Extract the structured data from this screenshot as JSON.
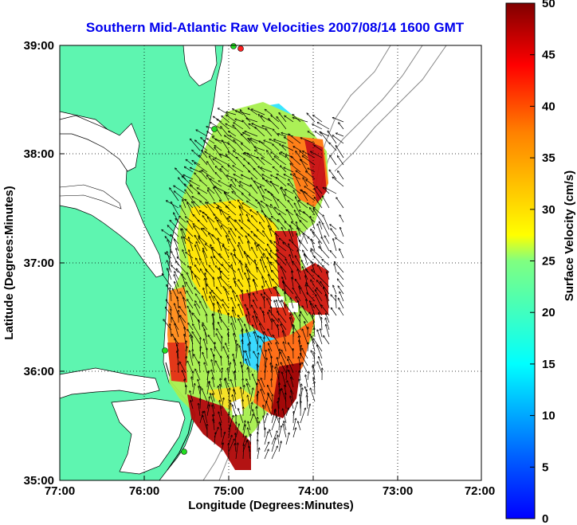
{
  "title": "Southern Mid-Atlantic Raw Velocities 2007/08/14 1600 GMT",
  "map": {
    "xlabel": "Longitude (Degrees:Minutes)",
    "ylabel": "Latitude (Degrees:Minutes)",
    "x_ticks": [
      "77:00",
      "76:00",
      "75:00",
      "74:00",
      "73:00",
      "72:00"
    ],
    "y_ticks": [
      "39:00",
      "38:00",
      "37:00",
      "36:00",
      "35:00"
    ],
    "lon_range": [
      -77,
      -72
    ],
    "lat_range": [
      35,
      39
    ],
    "grid": "dotted",
    "land_color": "#5ef5b0",
    "stations_green": [
      {
        "lon": -75.17,
        "lat": 38.98
      },
      {
        "lon": -75.1,
        "lat": 38.22
      },
      {
        "lon": -75.75,
        "lat": 36.18
      },
      {
        "lon": -75.47,
        "lat": 35.24
      }
    ],
    "stations_red": [
      {
        "lon": -75.09,
        "lat": 38.96
      }
    ]
  },
  "colorbar": {
    "label": "Surface Velocity (cm/s)",
    "ticks": [
      "50",
      "45",
      "40",
      "35",
      "30",
      "25",
      "20",
      "15",
      "10",
      "5",
      "0"
    ],
    "range": [
      0,
      50
    ],
    "colormap": "jet"
  }
}
